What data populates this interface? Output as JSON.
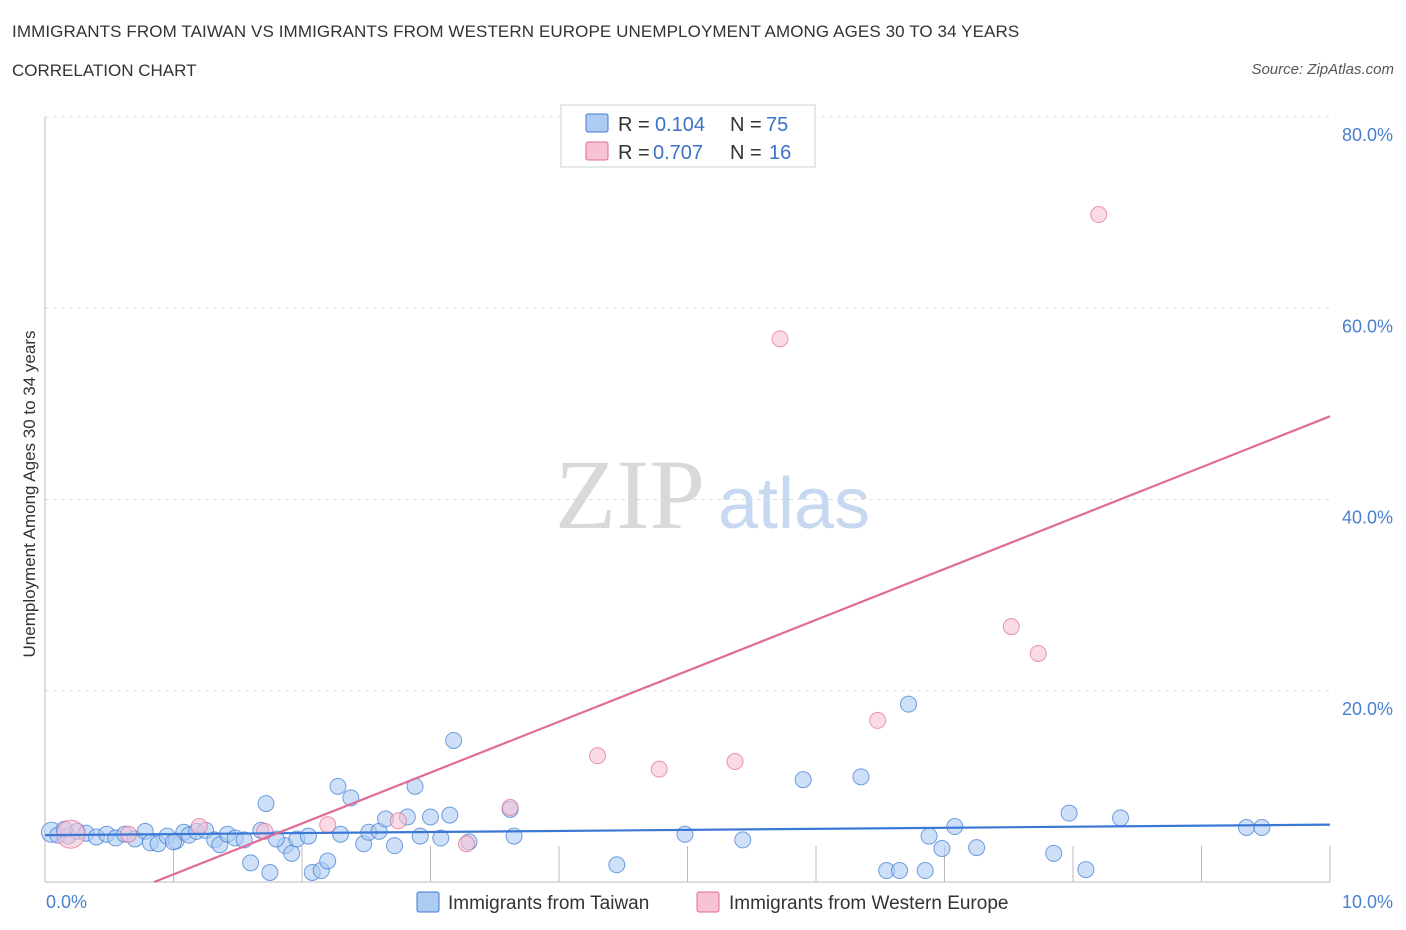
{
  "title": "IMMIGRANTS FROM TAIWAN VS IMMIGRANTS FROM WESTERN EUROPE UNEMPLOYMENT AMONG AGES 30 TO 34 YEARS",
  "subtitle": "CORRELATION CHART",
  "source": "Source: ZipAtlas.com",
  "watermark": {
    "zip": "ZIP",
    "atlas": "atlas"
  },
  "colors": {
    "blue": "#3a78d4",
    "blue_fill": "#aecbf2",
    "pink": "#e06b98",
    "pink_fill": "#f7c3d4",
    "grid": "#dddddd",
    "tick": "#4a7fd0"
  },
  "legend": {
    "rows": [
      {
        "r_label": "R =",
        "r_value": "0.104",
        "n_label": "N =",
        "n_value": "75"
      },
      {
        "r_label": "R =",
        "r_value": "0.707",
        "n_label": "N =",
        "n_value": "16"
      }
    ]
  },
  "bottom_legend": [
    "Immigrants from Taiwan",
    "Immigrants from Western Europe"
  ],
  "chart_data": {
    "type": "scatter",
    "title": "IMMIGRANTS FROM TAIWAN VS IMMIGRANTS FROM WESTERN EUROPE UNEMPLOYMENT AMONG AGES 30 TO 34 YEARS",
    "xlabel": "",
    "ylabel": "Unemployment Among Ages 30 to 34 years",
    "xlim": [
      0,
      10
    ],
    "ylim": [
      0,
      80
    ],
    "x_tick_labels": [
      "0.0%",
      "10.0%"
    ],
    "y_ticks": [
      20,
      40,
      60,
      80
    ],
    "y_tick_labels": [
      "20.0%",
      "40.0%",
      "60.0%",
      "80.0%"
    ],
    "grid": true,
    "legend_placement": "top-center",
    "series": [
      {
        "name": "Immigrants from Taiwan",
        "color": "#3a78d4",
        "trend": {
          "x": [
            0,
            10
          ],
          "y": [
            4.9,
            6.0
          ]
        },
        "points": [
          [
            0.05,
            5.2
          ],
          [
            0.1,
            4.9
          ],
          [
            0.18,
            4.8
          ],
          [
            0.25,
            5.3
          ],
          [
            0.32,
            5.1
          ],
          [
            0.4,
            4.7
          ],
          [
            0.48,
            5.0
          ],
          [
            0.55,
            4.6
          ],
          [
            0.62,
            5.0
          ],
          [
            0.7,
            4.5
          ],
          [
            0.78,
            5.3
          ],
          [
            0.82,
            4.1
          ],
          [
            0.88,
            4.0
          ],
          [
            0.95,
            4.8
          ],
          [
            1.02,
            4.3
          ],
          [
            1.08,
            5.2
          ],
          [
            1.12,
            4.9
          ],
          [
            1.18,
            5.3
          ],
          [
            1.25,
            5.4
          ],
          [
            1.32,
            4.4
          ],
          [
            1.36,
            3.9
          ],
          [
            1.42,
            5.0
          ],
          [
            1.48,
            4.6
          ],
          [
            1.55,
            4.4
          ],
          [
            1.6,
            2.0
          ],
          [
            1.68,
            5.4
          ],
          [
            1.72,
            8.2
          ],
          [
            1.75,
            1.0
          ],
          [
            1.87,
            3.8
          ],
          [
            1.92,
            3.0
          ],
          [
            1.96,
            4.5
          ],
          [
            2.05,
            4.8
          ],
          [
            2.08,
            1.0
          ],
          [
            2.15,
            1.2
          ],
          [
            2.2,
            2.2
          ],
          [
            2.28,
            10.0
          ],
          [
            2.3,
            5.0
          ],
          [
            2.38,
            8.8
          ],
          [
            2.48,
            4.0
          ],
          [
            2.52,
            5.2
          ],
          [
            2.6,
            5.3
          ],
          [
            2.65,
            6.6
          ],
          [
            2.72,
            3.8
          ],
          [
            2.82,
            6.8
          ],
          [
            2.88,
            10.0
          ],
          [
            2.92,
            4.8
          ],
          [
            3.0,
            6.8
          ],
          [
            3.08,
            4.6
          ],
          [
            3.15,
            7.0
          ],
          [
            3.18,
            14.8
          ],
          [
            3.3,
            4.2
          ],
          [
            3.62,
            7.6
          ],
          [
            3.65,
            4.8
          ],
          [
            4.45,
            1.8
          ],
          [
            4.98,
            5.0
          ],
          [
            5.43,
            4.4
          ],
          [
            5.9,
            10.7
          ],
          [
            6.35,
            11.0
          ],
          [
            6.55,
            1.2
          ],
          [
            6.65,
            1.2
          ],
          [
            6.72,
            18.6
          ],
          [
            6.85,
            1.2
          ],
          [
            6.88,
            4.8
          ],
          [
            6.98,
            3.5
          ],
          [
            7.08,
            5.8
          ],
          [
            7.25,
            3.6
          ],
          [
            7.85,
            3.0
          ],
          [
            7.97,
            7.2
          ],
          [
            8.1,
            1.3
          ],
          [
            8.37,
            6.7
          ],
          [
            9.35,
            5.7
          ],
          [
            9.47,
            5.7
          ],
          [
            0.15,
            5.5
          ],
          [
            1.0,
            4.2
          ],
          [
            1.8,
            4.5
          ]
        ]
      },
      {
        "name": "Immigrants from Western Europe",
        "color": "#e06b98",
        "trend": {
          "x": [
            0.85,
            10
          ],
          "y": [
            0,
            48.7
          ]
        },
        "points": [
          [
            0.2,
            5.0
          ],
          [
            0.65,
            5.0
          ],
          [
            1.2,
            5.8
          ],
          [
            1.71,
            5.3
          ],
          [
            2.2,
            6.0
          ],
          [
            2.75,
            6.4
          ],
          [
            3.28,
            4.0
          ],
          [
            3.62,
            7.8
          ],
          [
            4.3,
            13.2
          ],
          [
            4.78,
            11.8
          ],
          [
            5.37,
            12.6
          ],
          [
            5.72,
            56.8
          ],
          [
            6.48,
            16.9
          ],
          [
            7.52,
            26.7
          ],
          [
            7.73,
            23.9
          ],
          [
            8.2,
            69.8
          ]
        ]
      }
    ]
  }
}
